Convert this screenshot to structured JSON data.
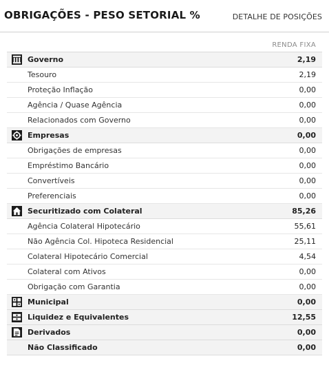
{
  "header": {
    "title": "OBRIGAÇÕES - PESO SETORIAL %",
    "detail_link": "DETALHE DE POSIÇÕES",
    "column_label": "RENDA FIXA"
  },
  "rows": [
    {
      "label": "Governo",
      "value": "2,19",
      "type": "cat",
      "icon": "government-icon"
    },
    {
      "label": "Tesouro",
      "value": "2,19",
      "type": "sub"
    },
    {
      "label": "Proteção Inflação",
      "value": "0,00",
      "type": "sub"
    },
    {
      "label": "Agência / Quase Agência",
      "value": "0,00",
      "type": "sub"
    },
    {
      "label": "Relacionados com Governo",
      "value": "0,00",
      "type": "sub"
    },
    {
      "label": "Empresas",
      "value": "0,00",
      "type": "cat",
      "icon": "gear-icon"
    },
    {
      "label": "Obrigações de empresas",
      "value": "0,00",
      "type": "sub"
    },
    {
      "label": "Empréstimo Bancário",
      "value": "0,00",
      "type": "sub"
    },
    {
      "label": "Convertíveis",
      "value": "0,00",
      "type": "sub"
    },
    {
      "label": "Preferenciais",
      "value": "0,00",
      "type": "sub"
    },
    {
      "label": "Securitizado com Colateral",
      "value": "85,26",
      "type": "cat",
      "icon": "house-icon"
    },
    {
      "label": "Agência Colateral Hipotecário",
      "value": "55,61",
      "type": "sub"
    },
    {
      "label": "Não Agência Col. Hipoteca Residencial",
      "value": "25,11",
      "type": "sub"
    },
    {
      "label": "Colateral Hipotecário Comercial",
      "value": "4,54",
      "type": "sub"
    },
    {
      "label": "Colateral com Ativos",
      "value": "0,00",
      "type": "sub"
    },
    {
      "label": "Obrigação com Garantia",
      "value": "0,00",
      "type": "sub"
    },
    {
      "label": "Municipal",
      "value": "0,00",
      "type": "cat",
      "icon": "municipal-icon"
    },
    {
      "label": "Liquidez e Equivalentes",
      "value": "12,55",
      "type": "cat",
      "icon": "cash-icon"
    },
    {
      "label": "Derivados",
      "value": "0,00",
      "type": "cat",
      "icon": "document-icon"
    },
    {
      "label": "Não Classificado",
      "value": "0,00",
      "type": "cat",
      "icon": ""
    }
  ]
}
